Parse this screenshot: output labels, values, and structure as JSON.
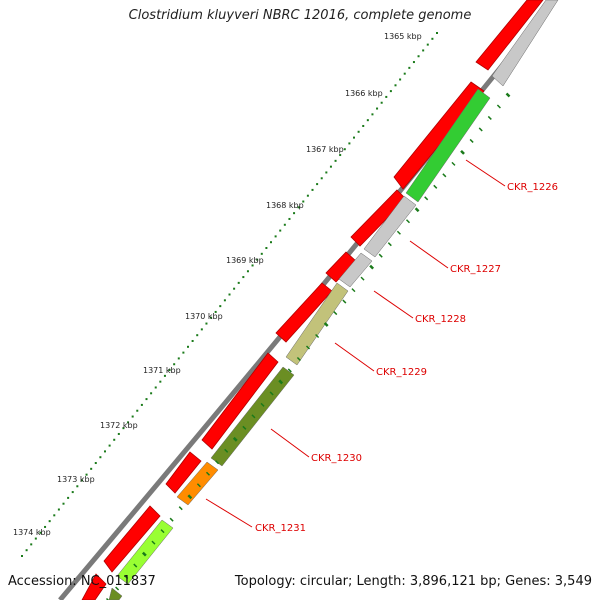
{
  "title": "Clostridium kluyveri NBRC 12016, complete genome",
  "footer": {
    "accession": "Accession: NC_011837",
    "stats": "Topology: circular; Length: 3,896,121 bp; Genes: 3,549"
  },
  "scale_ticks": [
    "1365 kbp",
    "1366 kbp",
    "1367 kbp",
    "1368 kbp",
    "1369 kbp",
    "1370 kbp",
    "1371 kbp",
    "1372 kbp",
    "1373 kbp",
    "1374 kbp"
  ],
  "gene_labels": [
    "CKR_1226",
    "CKR_1227",
    "CKR_1228",
    "CKR_1229",
    "CKR_1230",
    "CKR_1231"
  ],
  "colors": {
    "backbone": "#7a7a7a",
    "forward_strand": "#ff0000",
    "gene_green": "#33cc33",
    "gene_grey": "#c8c8c8",
    "gene_khaki": "#c2c27a",
    "gene_olive": "#6b8e23",
    "gene_orange": "#ff8c00",
    "gene_lime": "#99ff33",
    "tick_dots": "#1a7a1a",
    "label_red": "#dd0000"
  }
}
